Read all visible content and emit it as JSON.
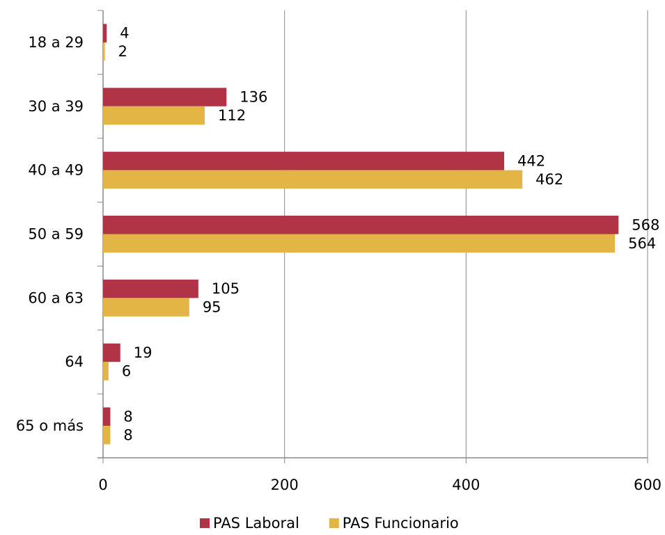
{
  "chart_data": {
    "type": "hbar",
    "categories": [
      "18 a 29",
      "30 a 39",
      "40 a 49",
      "50 a 59",
      "60 a 63",
      "64",
      "65 o más"
    ],
    "series": [
      {
        "name": "PAS Laboral",
        "color": "#b03446",
        "values": [
          4,
          136,
          442,
          568,
          105,
          19,
          8
        ]
      },
      {
        "name": "PAS Funcionario",
        "color": "#e3b545",
        "values": [
          2,
          112,
          462,
          564,
          95,
          6,
          8
        ]
      }
    ],
    "xlim": [
      0,
      600
    ],
    "xticks": [
      0,
      200,
      400,
      600
    ],
    "grid": true,
    "legend": "bottom"
  }
}
